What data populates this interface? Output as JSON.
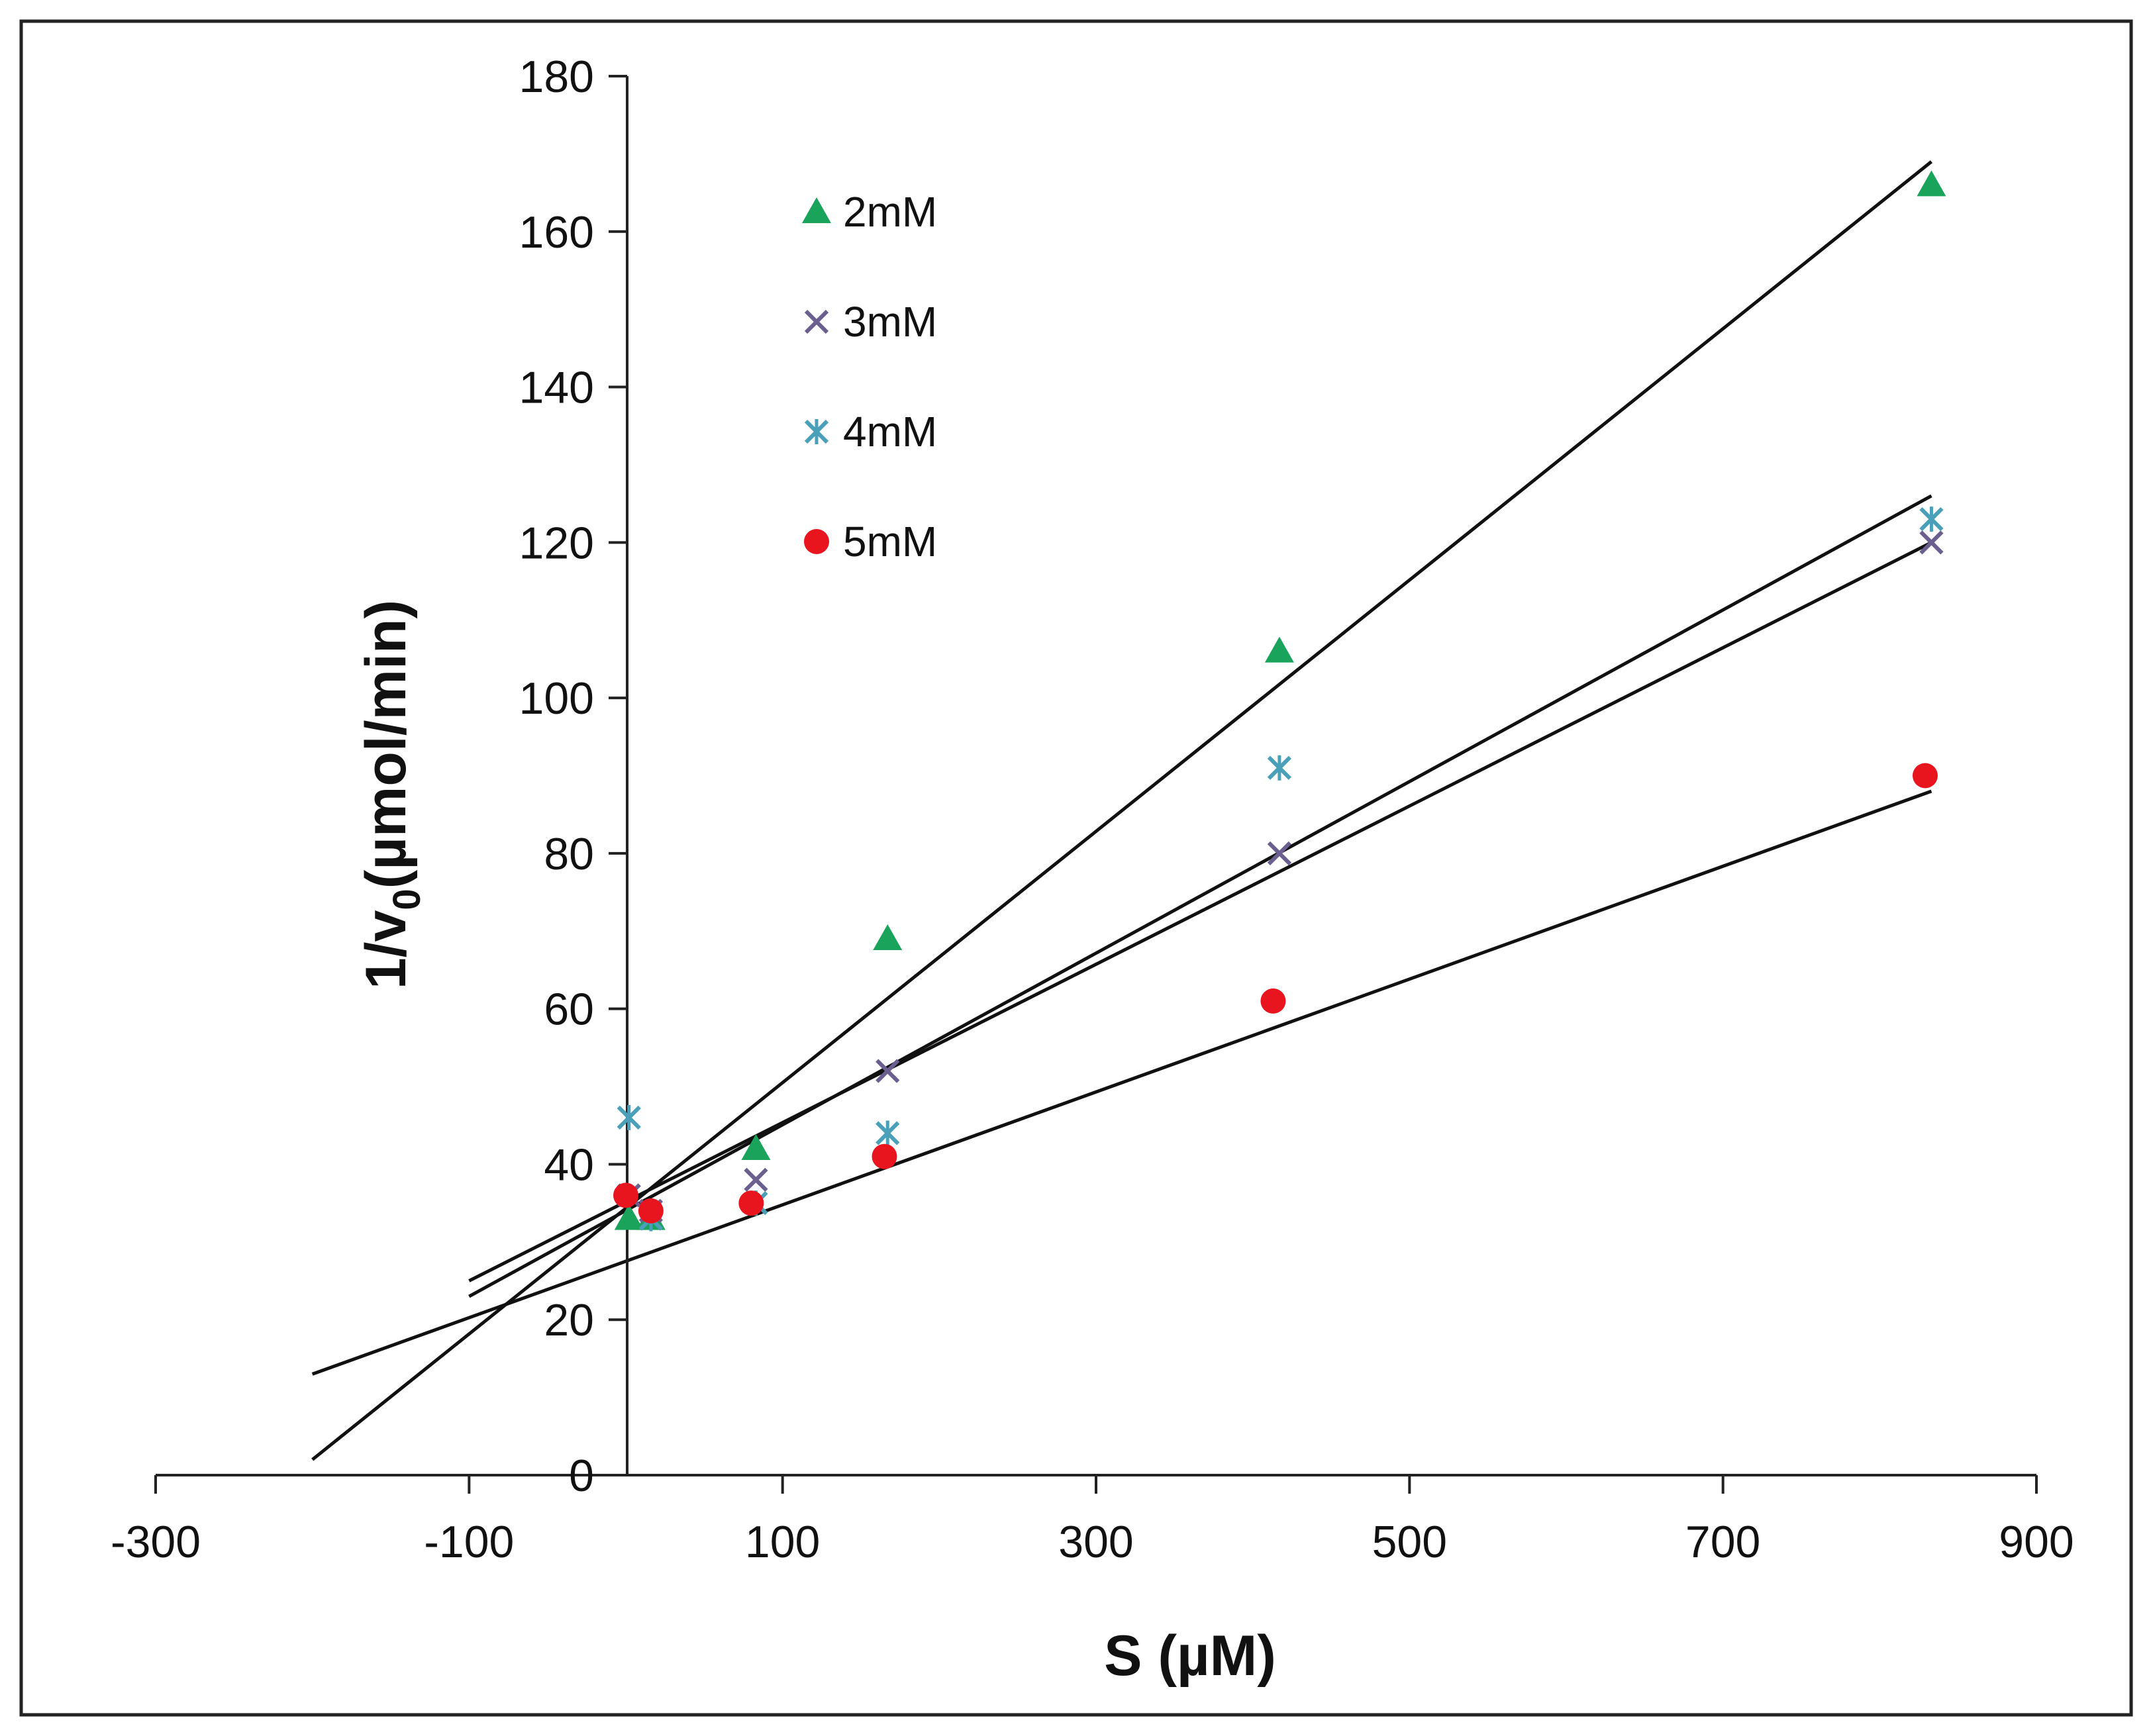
{
  "chart_data": {
    "type": "scatter",
    "title": "",
    "xlabel": "S (µM)",
    "ylabel_main": "1/v",
    "ylabel_sub": "0",
    "ylabel_rest": "(µmol/min)",
    "xlim": [
      -300,
      900
    ],
    "ylim": [
      0,
      180
    ],
    "xticks": [
      -300,
      -100,
      100,
      300,
      500,
      700,
      900
    ],
    "yticks": [
      0,
      20,
      40,
      60,
      80,
      100,
      120,
      140,
      160,
      180
    ],
    "grid": false,
    "legend_position": "top-left",
    "series": [
      {
        "name": "2mM",
        "marker": "triangle",
        "color": "#1aa35a",
        "x": [
          2,
          16,
          83,
          167,
          417,
          833
        ],
        "y": [
          33,
          33,
          42,
          69,
          106,
          166
        ],
        "fit": {
          "x": [
            -200,
            833
          ],
          "y": [
            2,
            169
          ]
        }
      },
      {
        "name": "3mM",
        "marker": "x",
        "color": "#6b5f8f",
        "x": [
          2,
          16,
          83,
          167,
          417,
          833
        ],
        "y": [
          36,
          34,
          38,
          52,
          80,
          120
        ],
        "fit": {
          "x": [
            -100,
            833
          ],
          "y": [
            23,
            126
          ]
        }
      },
      {
        "name": "4mM",
        "marker": "star",
        "color": "#4aa0b8",
        "x": [
          2,
          16,
          83,
          167,
          417,
          833
        ],
        "y": [
          46,
          33,
          35,
          44,
          91,
          123
        ],
        "fit": {
          "x": [
            -100,
            833
          ],
          "y": [
            25,
            120
          ]
        }
      },
      {
        "name": "5mM",
        "marker": "circle",
        "color": "#e8141e",
        "x": [
          0,
          16,
          80,
          165,
          413,
          829
        ],
        "y": [
          36,
          34,
          35,
          41,
          61,
          90
        ],
        "fit": {
          "x": [
            -200,
            833
          ],
          "y": [
            13,
            88
          ]
        }
      }
    ]
  }
}
